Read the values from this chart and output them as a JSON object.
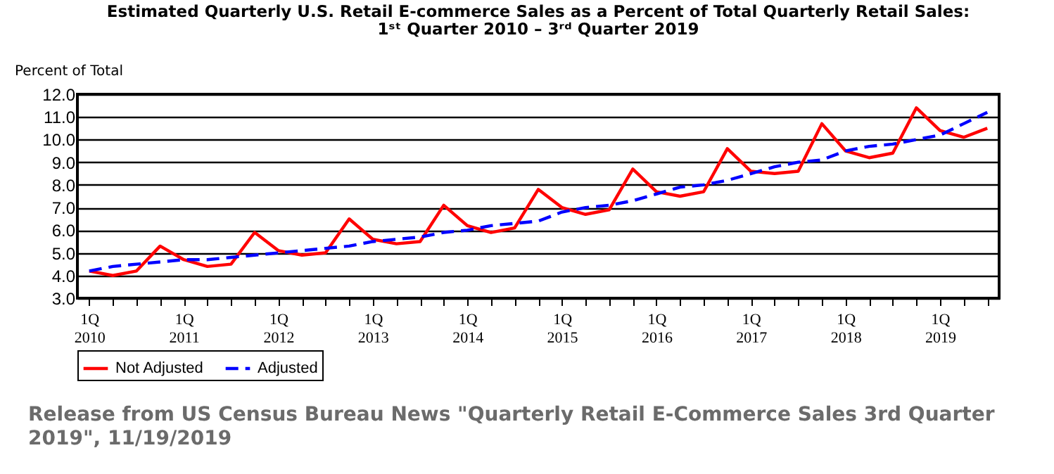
{
  "chart_data": {
    "type": "line",
    "title": "Estimated Quarterly U.S. Retail E-commerce Sales as a Percent of Total Quarterly Retail Sales:",
    "subtitle": "1ˢᵗ Quarter 2010 – 3ʳᵈ Quarter 2019",
    "ylabel": "Percent of Total",
    "categories": [
      "1Q 2010",
      null,
      null,
      null,
      "1Q 2011",
      null,
      null,
      null,
      "1Q 2012",
      null,
      null,
      null,
      "1Q 2013",
      null,
      null,
      null,
      "1Q 2014",
      null,
      null,
      null,
      "1Q 2015",
      null,
      null,
      null,
      "1Q 2016",
      null,
      null,
      null,
      "1Q 2017",
      null,
      null,
      null,
      "1Q 2018",
      null,
      null,
      null,
      "1Q 2019",
      null,
      null
    ],
    "series": [
      {
        "name": "Not Adjusted",
        "color": "#ff0000",
        "line_style": "solid",
        "values": [
          4.2,
          4.0,
          4.2,
          5.3,
          4.7,
          4.4,
          4.5,
          5.9,
          5.1,
          4.9,
          5.0,
          6.5,
          5.6,
          5.4,
          5.5,
          7.1,
          6.2,
          5.9,
          6.1,
          7.8,
          7.0,
          6.7,
          6.9,
          8.7,
          7.7,
          7.5,
          7.7,
          9.6,
          8.6,
          8.5,
          8.6,
          10.7,
          9.5,
          9.2,
          9.4,
          11.4,
          10.4,
          10.1,
          10.5
        ]
      },
      {
        "name": "Adjusted",
        "color": "#0000ff",
        "line_style": "dashed",
        "values": [
          4.2,
          4.4,
          4.5,
          4.6,
          4.7,
          4.7,
          4.8,
          4.9,
          5.0,
          5.1,
          5.2,
          5.3,
          5.5,
          5.6,
          5.7,
          5.9,
          6.0,
          6.2,
          6.3,
          6.4,
          6.8,
          7.0,
          7.1,
          7.3,
          7.6,
          7.9,
          8.0,
          8.2,
          8.5,
          8.8,
          9.0,
          9.1,
          9.5,
          9.7,
          9.8,
          10.0,
          10.2,
          10.7,
          11.2
        ]
      }
    ],
    "ylim": [
      3,
      12
    ],
    "yticks": [
      {
        "value": 3,
        "label": "3.0"
      },
      {
        "value": 4,
        "label": "4.0"
      },
      {
        "value": 5,
        "label": "5.0"
      },
      {
        "value": 6,
        "label": "6.0"
      },
      {
        "value": 7,
        "label": "7.0"
      },
      {
        "value": 8,
        "label": "8.0"
      },
      {
        "value": 9,
        "label": "9.0"
      },
      {
        "value": 10,
        "label": "10.0"
      },
      {
        "value": 11,
        "label": "11.0"
      },
      {
        "value": 12,
        "label": "12.0"
      }
    ],
    "grid": "y",
    "legend": "bottom",
    "marker": "none",
    "annotations": [
      "Release from US Census Bureau News \"Quarterly Retail E-Commerce Sales 3rd Quarter 2019\", 11/19/2019"
    ]
  }
}
